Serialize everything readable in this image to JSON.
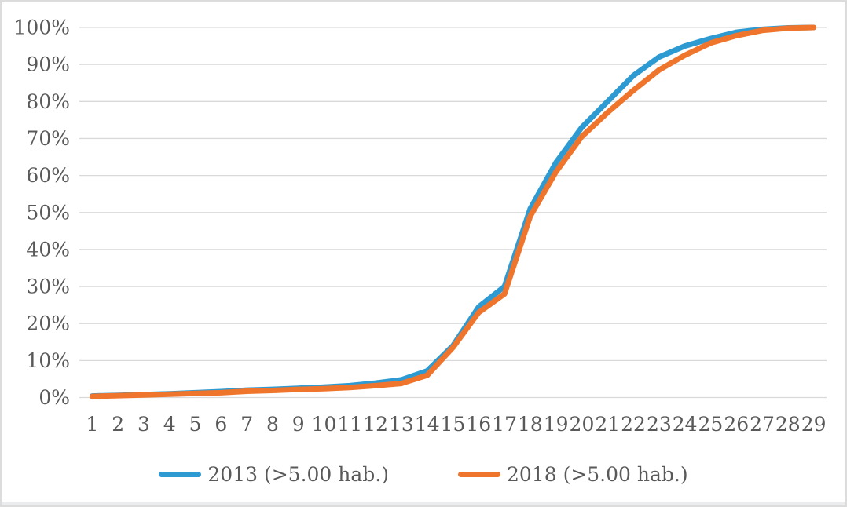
{
  "figure": {
    "background": "#FFFFFF",
    "border_color": "#DCDCDC",
    "bottom_strip_color": "#EBECEE"
  },
  "chart_data": {
    "type": "line",
    "title": "",
    "xlabel": "",
    "ylabel": "",
    "categories": [
      "1",
      "2",
      "3",
      "4",
      "5",
      "6",
      "7",
      "8",
      "9",
      "10",
      "11",
      "12",
      "13",
      "14",
      "15",
      "16",
      "17",
      "18",
      "19",
      "20",
      "21",
      "22",
      "23",
      "24",
      "25",
      "26",
      "27",
      "28",
      "29"
    ],
    "series": [
      {
        "name": "2013 (>5.00 hab.)",
        "color": "#2E9AD2",
        "values": [
          0.4,
          0.6,
          0.8,
          1.0,
          1.3,
          1.6,
          2.0,
          2.2,
          2.5,
          2.8,
          3.2,
          3.9,
          4.8,
          7.2,
          14.0,
          24.5,
          30.0,
          51.0,
          63.5,
          73.0,
          80.0,
          87.0,
          92.0,
          95.0,
          97.0,
          98.7,
          99.5,
          99.9,
          100.0
        ]
      },
      {
        "name": "2018 (>5.00 hab.)",
        "color": "#F0752C",
        "values": [
          0.3,
          0.5,
          0.7,
          0.9,
          1.1,
          1.3,
          1.7,
          1.9,
          2.2,
          2.4,
          2.7,
          3.2,
          3.8,
          6.0,
          13.5,
          23.0,
          28.0,
          49.0,
          61.0,
          70.5,
          77.0,
          83.0,
          88.5,
          92.5,
          95.8,
          97.8,
          99.2,
          99.8,
          100.0
        ]
      }
    ],
    "ylim": [
      0,
      100
    ],
    "ytick_step": 10,
    "ytick_suffix": "%",
    "ytick_labels": [
      "0%",
      "10%",
      "20%",
      "30%",
      "40%",
      "50%",
      "60%",
      "70%",
      "80%",
      "90%",
      "100%"
    ],
    "grid": "horizontal",
    "gridline_color": "#D9D9D9",
    "axis_text_color": "#595959",
    "line_width": 7,
    "legend_position": "bottom"
  }
}
